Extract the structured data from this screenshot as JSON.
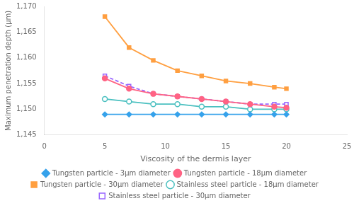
{
  "chart_data": {
    "type": "line",
    "x": [
      5,
      7,
      9,
      11,
      13,
      15,
      17,
      19,
      20
    ],
    "series": [
      {
        "name": "Tungsten particle - 3μm diameter",
        "values": [
          1149.0,
          1149.0,
          1149.0,
          1149.0,
          1149.0,
          1149.0,
          1149.0,
          1149.0,
          1149.0
        ],
        "marker": "diamond",
        "line_style": "solid"
      },
      {
        "name": "Tungsten particle - 18μm diameter",
        "values": [
          1156.0,
          1154.0,
          1153.0,
          1152.5,
          1152.0,
          1151.5,
          1151.0,
          1150.5,
          1150.3
        ],
        "marker": "circle",
        "line_style": "solid"
      },
      {
        "name": "Tungsten particle - 30μm diameter",
        "values": [
          1168.0,
          1162.0,
          1159.5,
          1157.5,
          1156.5,
          1155.5,
          1155.0,
          1154.3,
          1154.0
        ],
        "marker": "square",
        "line_style": "solid"
      },
      {
        "name": "Stainless steel particle - 18μm diameter",
        "values": [
          1152.0,
          1151.5,
          1151.0,
          1151.0,
          1150.5,
          1150.5,
          1150.0,
          1150.0,
          1150.0
        ],
        "marker": "open_circle",
        "line_style": "solid"
      },
      {
        "name": "Stainless steel particle - 30μm diameter",
        "values": [
          1156.5,
          1154.5,
          1153.0,
          1152.5,
          1152.0,
          1151.5,
          1151.0,
          1151.0,
          1151.0
        ],
        "marker": "open_square",
        "line_style": "dashed"
      }
    ],
    "xlabel": "Viscosity of the dermis layer",
    "ylabel": "Maximum penetration depth (μm)",
    "xlim": [
      0,
      25
    ],
    "xticks": [
      0,
      5,
      10,
      15,
      20,
      25
    ],
    "ylim": [
      1145,
      1170
    ],
    "yticks": [
      1145,
      1150,
      1155,
      1160,
      1165,
      1170
    ],
    "grid": false,
    "legend": "bottom"
  }
}
